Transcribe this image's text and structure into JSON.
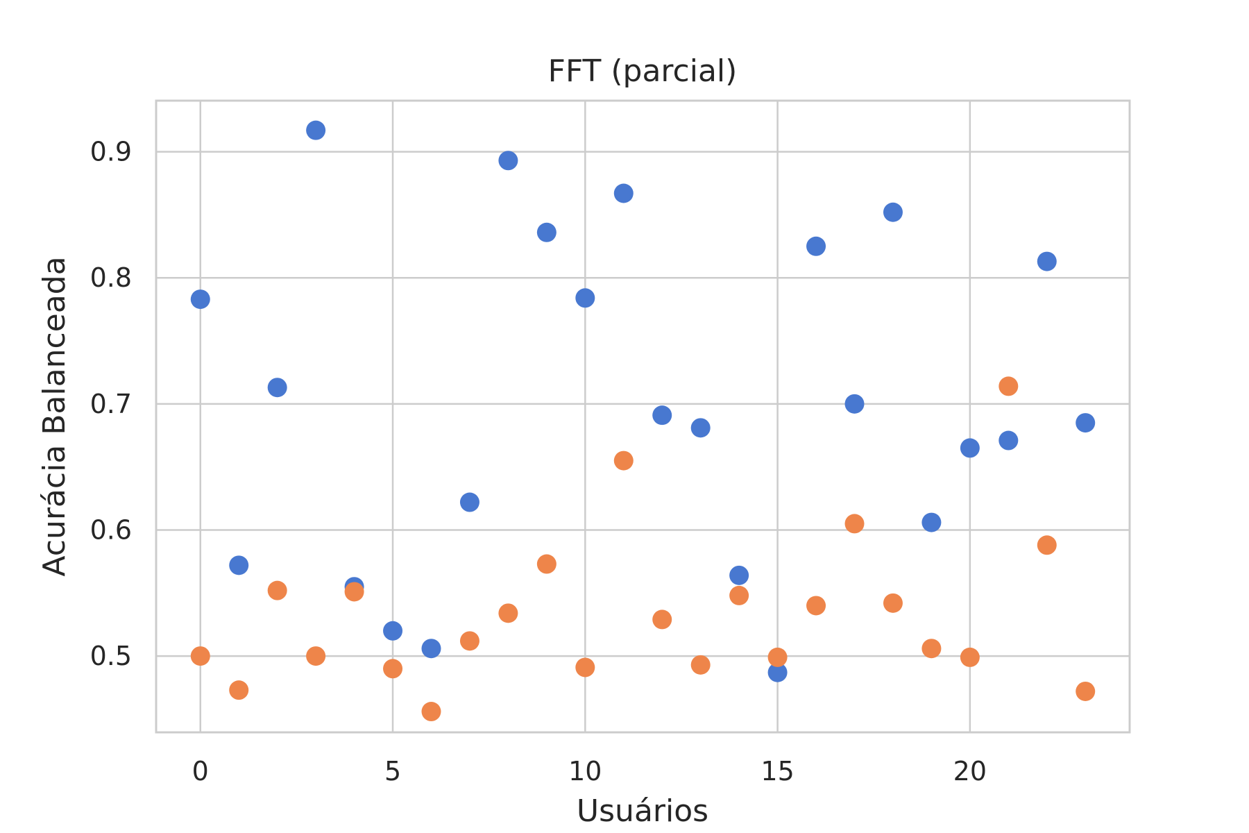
{
  "chart_data": {
    "type": "scatter",
    "title": "FFT (parcial)",
    "xlabel": "Usuários",
    "ylabel": "Acurácia Balanceada",
    "xlim": [
      -1.15,
      24.15
    ],
    "ylim": [
      0.4395,
      0.9405
    ],
    "xticks": [
      0,
      5,
      10,
      15,
      20
    ],
    "xtick_labels": [
      "0",
      "5",
      "10",
      "15",
      "20"
    ],
    "yticks": [
      0.5,
      0.6,
      0.7,
      0.8,
      0.9
    ],
    "ytick_labels": [
      "0.5",
      "0.6",
      "0.7",
      "0.8",
      "0.9"
    ],
    "grid": true,
    "legend": false,
    "series": [
      {
        "color": "#4878d0",
        "x": [
          0,
          1,
          2,
          3,
          4,
          5,
          6,
          7,
          8,
          9,
          10,
          11,
          12,
          13,
          14,
          15,
          16,
          17,
          18,
          19,
          20,
          21,
          22,
          23
        ],
        "y": [
          0.783,
          0.572,
          0.713,
          0.917,
          0.555,
          0.52,
          0.506,
          0.622,
          0.893,
          0.836,
          0.784,
          0.867,
          0.691,
          0.681,
          0.564,
          0.487,
          0.825,
          0.7,
          0.852,
          0.606,
          0.665,
          0.671,
          0.813,
          0.685
        ]
      },
      {
        "color": "#ee854a",
        "x": [
          0,
          1,
          2,
          3,
          4,
          5,
          6,
          7,
          8,
          9,
          10,
          11,
          12,
          13,
          14,
          15,
          16,
          17,
          18,
          19,
          20,
          21,
          22,
          23
        ],
        "y": [
          0.5,
          0.473,
          0.552,
          0.5,
          0.551,
          0.49,
          0.456,
          0.512,
          0.534,
          0.573,
          0.491,
          0.655,
          0.529,
          0.493,
          0.548,
          0.499,
          0.54,
          0.605,
          0.542,
          0.506,
          0.499,
          0.714,
          0.588,
          0.472
        ]
      }
    ]
  }
}
